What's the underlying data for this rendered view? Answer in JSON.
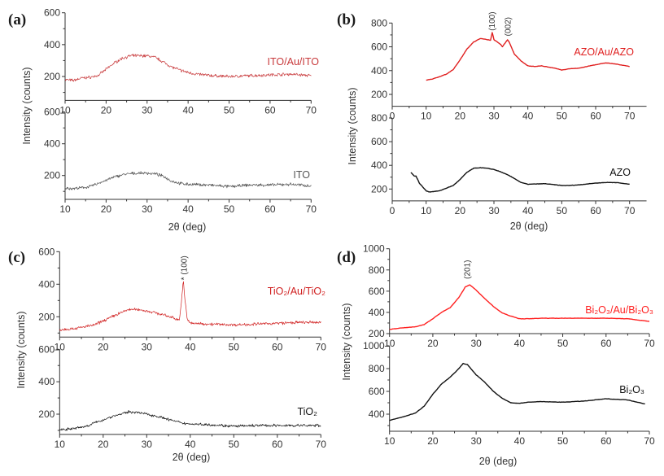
{
  "chart_data": [
    {
      "panel_label": "(a)",
      "xlabel": "2θ (deg)",
      "ylabel": "Intensity (counts)",
      "subplots": [
        {
          "type": "line",
          "xlim": [
            10,
            70
          ],
          "ylim": [
            50,
            600
          ],
          "xticks": [
            10,
            20,
            30,
            40,
            50,
            60,
            70
          ],
          "yticks": [
            200,
            400,
            600
          ],
          "grid": false,
          "series": [
            {
              "name": "ITO/Au/ITO",
              "color": "#c8393b",
              "x": [
                10,
                12,
                14,
                16,
                18,
                20,
                22,
                24,
                26,
                28,
                30,
                32,
                34,
                36,
                38,
                40,
                42,
                44,
                46,
                50,
                55,
                60,
                65,
                70
              ],
              "y": [
                180,
                175,
                190,
                195,
                205,
                245,
                285,
                315,
                330,
                330,
                330,
                320,
                290,
                260,
                240,
                225,
                215,
                210,
                205,
                200,
                205,
                210,
                215,
                205
              ]
            }
          ],
          "annotations": []
        },
        {
          "type": "line",
          "xlim": [
            10,
            70
          ],
          "ylim": [
            50,
            600
          ],
          "xticks": [
            10,
            20,
            30,
            40,
            50,
            60,
            70
          ],
          "yticks": [
            200,
            400,
            600
          ],
          "grid": false,
          "series": [
            {
              "name": "ITO",
              "color": "#555555",
              "x": [
                10,
                12,
                14,
                16,
                18,
                20,
                22,
                24,
                26,
                28,
                30,
                32,
                34,
                36,
                38,
                40,
                45,
                50,
                55,
                60,
                65,
                70
              ],
              "y": [
                120,
                118,
                122,
                130,
                150,
                170,
                190,
                205,
                212,
                215,
                215,
                210,
                195,
                165,
                150,
                145,
                140,
                130,
                140,
                140,
                145,
                135
              ]
            }
          ],
          "annotations": []
        }
      ]
    },
    {
      "panel_label": "(b)",
      "xlabel": "2θ (deg)",
      "ylabel": "Intensity (counts)",
      "subplots": [
        {
          "type": "line",
          "xlim": [
            0,
            75
          ],
          "ylim": [
            100,
            800
          ],
          "xticks": [
            0,
            10,
            20,
            30,
            40,
            50,
            60,
            70
          ],
          "yticks": [
            200,
            400,
            600,
            800
          ],
          "grid": false,
          "series": [
            {
              "name": "AZO/Au/AZO",
              "color": "#e02020",
              "x": [
                10,
                12,
                14,
                16,
                18,
                20,
                22,
                24,
                26,
                28,
                29,
                29.5,
                30,
                32,
                32.5,
                34,
                34.5,
                36,
                38,
                40,
                42,
                44,
                46,
                48,
                50,
                52,
                55,
                60,
                63,
                66,
                70
              ],
              "y": [
                320,
                330,
                350,
                370,
                410,
                490,
                580,
                640,
                670,
                660,
                655,
                720,
                660,
                620,
                600,
                660,
                640,
                540,
                480,
                440,
                435,
                440,
                430,
                420,
                405,
                415,
                420,
                450,
                465,
                455,
                435
              ]
            }
          ],
          "annotations": [
            {
              "text": "(100)",
              "x": 29.5,
              "y": 735
            },
            {
              "text": "(002)",
              "x": 34.2,
              "y": 690
            }
          ]
        },
        {
          "type": "line",
          "xlim": [
            0,
            75
          ],
          "ylim": [
            100,
            800
          ],
          "xticks": [
            0,
            10,
            20,
            30,
            40,
            50,
            60,
            70
          ],
          "yticks": [
            200,
            400,
            600,
            800
          ],
          "grid": false,
          "series": [
            {
              "name": "AZO",
              "color": "#111111",
              "x": [
                5.5,
                6.5,
                7,
                8,
                10,
                11,
                14,
                18,
                20,
                22,
                24,
                26,
                28,
                30,
                32,
                34,
                36,
                38,
                40,
                45,
                50,
                52,
                55,
                60,
                63,
                66,
                70
              ],
              "y": [
                340,
                310,
                310,
                250,
                185,
                175,
                185,
                230,
                280,
                340,
                375,
                380,
                375,
                365,
                345,
                320,
                290,
                255,
                240,
                245,
                230,
                230,
                235,
                250,
                255,
                255,
                240
              ]
            }
          ],
          "annotations": []
        }
      ]
    },
    {
      "panel_label": "(c)",
      "xlabel": "2θ (deg)",
      "ylabel": "Intensity (counts)",
      "subplots": [
        {
          "type": "line",
          "xlim": [
            10,
            70
          ],
          "ylim": [
            75,
            600
          ],
          "xticks": [
            10,
            20,
            30,
            40,
            50,
            60,
            70
          ],
          "yticks": [
            200,
            400,
            600
          ],
          "grid": false,
          "series": [
            {
              "name": "TiO₂/Au/TiO₂",
              "color": "#d02020",
              "x": [
                10,
                14,
                18,
                20,
                22,
                24,
                26,
                28,
                30,
                32,
                34,
                36,
                37.5,
                38,
                38.4,
                38.8,
                39.3,
                40,
                45,
                50,
                55,
                60,
                65,
                70
              ],
              "y": [
                120,
                130,
                150,
                175,
                200,
                225,
                245,
                245,
                235,
                225,
                210,
                195,
                180,
                300,
                420,
                300,
                190,
                160,
                155,
                150,
                155,
                160,
                165,
                165
              ]
            }
          ],
          "annotations": [
            {
              "text": "* (100)",
              "x": 38.6,
              "y": 425
            }
          ]
        },
        {
          "type": "line",
          "xlim": [
            10,
            70
          ],
          "ylim": [
            75,
            600
          ],
          "xticks": [
            10,
            20,
            30,
            40,
            50,
            60,
            70
          ],
          "yticks": [
            200,
            400,
            600
          ],
          "grid": false,
          "series": [
            {
              "name": "TiO₂",
              "color": "#111111",
              "x": [
                10,
                13,
                16,
                18,
                20,
                22,
                24,
                26,
                28,
                30,
                32,
                34,
                36,
                38,
                40,
                45,
                50,
                55,
                60,
                65,
                70
              ],
              "y": [
                105,
                110,
                125,
                145,
                165,
                185,
                200,
                215,
                210,
                200,
                190,
                175,
                160,
                145,
                140,
                135,
                125,
                130,
                130,
                130,
                130
              ]
            }
          ],
          "annotations": []
        }
      ]
    },
    {
      "panel_label": "(d)",
      "xlabel": "2θ (deg)",
      "ylabel": "Intensity (counts)",
      "subplots": [
        {
          "type": "line",
          "xlim": [
            10,
            70
          ],
          "ylim": [
            200,
            1000
          ],
          "xticks": [
            10,
            20,
            30,
            40,
            50,
            60,
            70
          ],
          "yticks": [
            200,
            400,
            600,
            800,
            1000
          ],
          "grid": false,
          "series": [
            {
              "name": "Bi₂O₃/Au/Bi₂O₃",
              "color": "#ff2020",
              "x": [
                10,
                12,
                16,
                18,
                20,
                22,
                24,
                26,
                27.5,
                28.5,
                30,
                32,
                34,
                36,
                38,
                40,
                42,
                45,
                50,
                55,
                60,
                65,
                70
              ],
              "y": [
                240,
                250,
                265,
                285,
                340,
                400,
                445,
                540,
                640,
                660,
                610,
                530,
                455,
                395,
                365,
                340,
                340,
                345,
                345,
                345,
                345,
                340,
                315
              ]
            }
          ],
          "annotations": [
            {
              "text": "(201)",
              "x": 28,
              "y": 715
            }
          ]
        },
        {
          "type": "line",
          "xlim": [
            10,
            70
          ],
          "ylim": [
            250,
            1000
          ],
          "xticks": [
            10,
            20,
            30,
            40,
            50,
            60,
            70
          ],
          "yticks": [
            400,
            600,
            800,
            1000
          ],
          "grid": false,
          "series": [
            {
              "name": "Bi₂O₃",
              "color": "#111111",
              "x": [
                10,
                13,
                16,
                18,
                20,
                22,
                24,
                26,
                27,
                28,
                30,
                32,
                34,
                36,
                38,
                40,
                42,
                45,
                50,
                55,
                60,
                65,
                69
              ],
              "y": [
                345,
                375,
                410,
                470,
                575,
                665,
                725,
                800,
                845,
                835,
                745,
                680,
                600,
                540,
                500,
                495,
                505,
                510,
                505,
                515,
                535,
                525,
                490
              ]
            }
          ],
          "annotations": []
        }
      ]
    }
  ]
}
